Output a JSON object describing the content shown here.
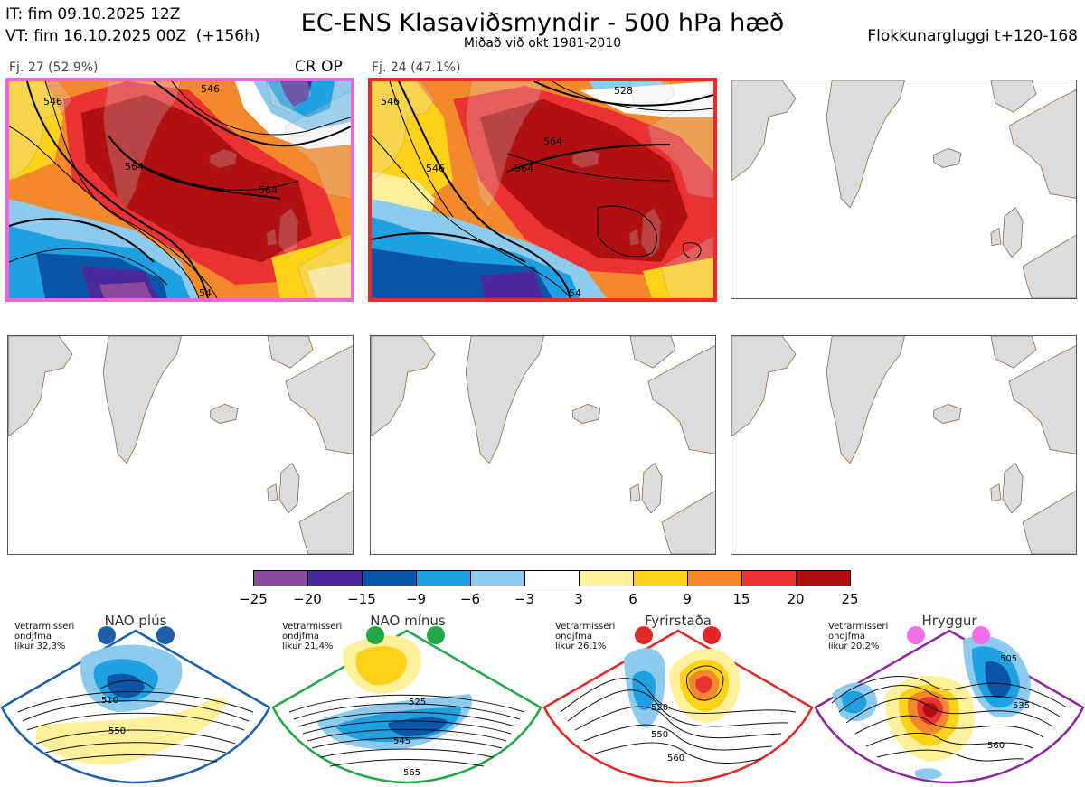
{
  "header": {
    "it": "IT: fim 09.10.2025 12Z",
    "vt": "VT: fim 16.10.2025 00Z  (+156h)",
    "title": "EC-ENS Klasaviðsmyndir - 500 hPa hæð",
    "subtitle": "Miðað við okt 1981-2010",
    "window": "Flokkunargluggi t+120-168"
  },
  "clusters": [
    {
      "label": "Fj. 27 (52.9%)",
      "tag": "CR OP",
      "border_color": "#ee66dd",
      "contours": [
        "546",
        "546",
        "564",
        "564",
        "54"
      ]
    },
    {
      "label": "Fj. 24 (47.1%)",
      "tag": "",
      "border_color": "#ee2a2a",
      "contours": [
        "546",
        "528",
        "546",
        "564",
        "564",
        "54"
      ]
    }
  ],
  "colorbar": {
    "ticks": [
      "-25",
      "-20",
      "-15",
      "-9",
      "-6",
      "-3",
      "3",
      "6",
      "9",
      "15",
      "20",
      "25"
    ],
    "colors": [
      "#8b4a9e",
      "#4a2a9a",
      "#0a55a8",
      "#1fa0e0",
      "#8ccbee",
      "#ffffff",
      "#fff09a",
      "#ffd21a",
      "#f3892a",
      "#ea3232",
      "#b01010"
    ]
  },
  "regimes": [
    {
      "name": "NAO plús",
      "note": "Vetrarmisseri\nondjfma\nlíkur 32,3%",
      "color": "#1d5fa8",
      "labels": [
        "510",
        "550"
      ]
    },
    {
      "name": "NAO mínus",
      "note": "Vetrarmisseri\nondjfma\nlíkur 21,4%",
      "color": "#22a845",
      "labels": [
        "525",
        "545",
        "565"
      ]
    },
    {
      "name": "Fyrirstaða",
      "note": "Vetrarmisseri\nondjfma\nlíkur 26,1%",
      "color": "#e32626",
      "labels": [
        "520",
        "550",
        "560"
      ]
    },
    {
      "name": "Hryggur",
      "note": "Vetrarmisseri\nondjfma\nlíkur 20,2%",
      "color": "#f06ee8",
      "labels": [
        "505",
        "535",
        "560"
      ]
    }
  ]
}
